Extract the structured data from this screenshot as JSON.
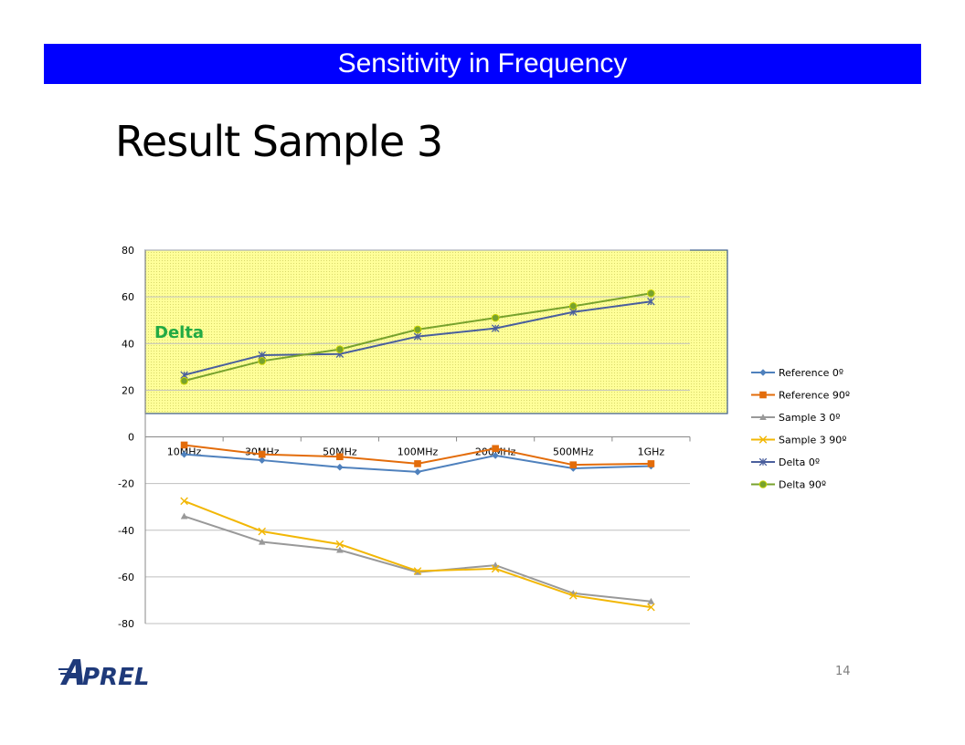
{
  "slide": {
    "banner_title": "Sensitivity in Frequency",
    "title": "Result Sample 3",
    "page_number": "14",
    "logo_text": "APREL"
  },
  "chart_data": {
    "type": "line",
    "categories": [
      "10MHz",
      "30MHz",
      "50MHz",
      "100MHz",
      "200MHz",
      "500MHz",
      "1GHz"
    ],
    "ylim": [
      -80,
      80
    ],
    "yticks": [
      80,
      60,
      40,
      20,
      0,
      -20,
      -40,
      -60,
      -80
    ],
    "grid": true,
    "legend_position": "right",
    "annotation": "Delta",
    "highlight_region": [
      10,
      80
    ],
    "series": [
      {
        "name": "Reference 0º",
        "color": "#4f81bd",
        "marker": "diamond",
        "values": [
          -7.5,
          -10,
          -13,
          -15,
          -8,
          -13.5,
          -12.5
        ]
      },
      {
        "name": "Reference 90º",
        "color": "#e36c0a",
        "marker": "square",
        "values": [
          -3.5,
          -7.5,
          -8.5,
          -11.5,
          -5,
          -12,
          -11.5
        ]
      },
      {
        "name": "Sample 3 0º",
        "color": "#999999",
        "marker": "triangle",
        "values": [
          -34,
          -45,
          -48.5,
          -58,
          -55,
          -67,
          -70.5
        ]
      },
      {
        "name": "Sample 3 90º",
        "color": "#f2b705",
        "marker": "x",
        "values": [
          -27.5,
          -40.5,
          -46,
          -57.5,
          -56.5,
          -68,
          -73
        ]
      },
      {
        "name": "Delta 0º",
        "color": "#4a5f9d",
        "marker": "star",
        "values": [
          26.5,
          35,
          35.5,
          43,
          46.5,
          53.5,
          58
        ]
      },
      {
        "name": "Delta 90º",
        "color": "#77a22d",
        "marker": "circle",
        "values": [
          24,
          32.5,
          37.5,
          46,
          51,
          56,
          61.5
        ]
      }
    ]
  }
}
